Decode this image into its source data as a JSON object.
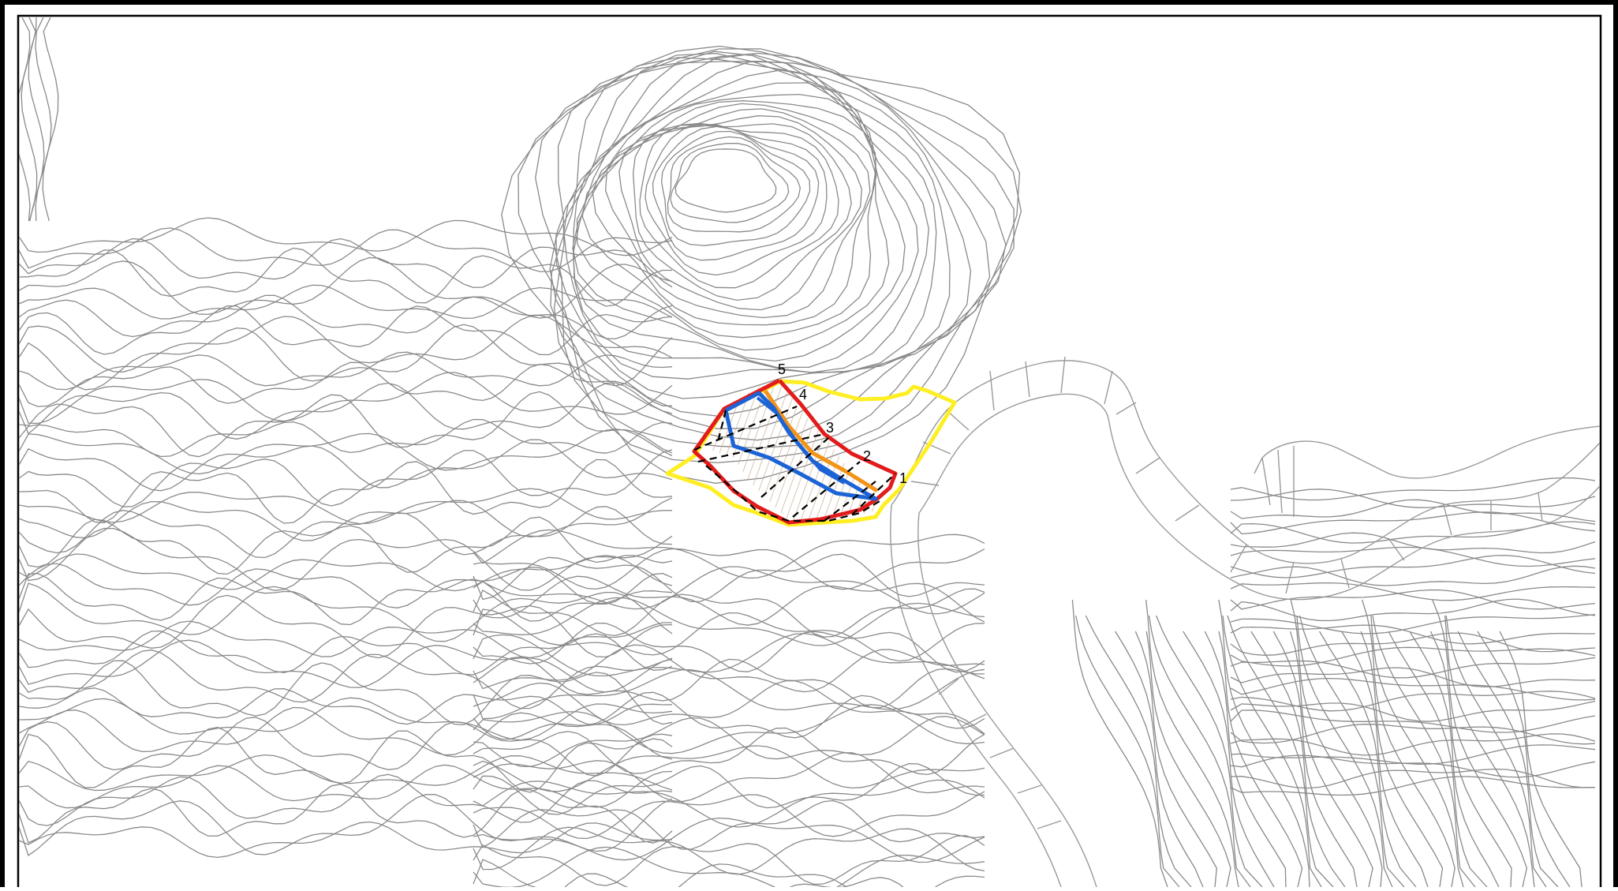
{
  "map": {
    "section_labels": [
      "1",
      "2",
      "3",
      "4",
      "5"
    ],
    "colors": {
      "frame": "#000000",
      "contour": "#8a8a8a",
      "road": "#9a9a9a",
      "outer_zone": "#ffee22",
      "danger_zone": "#e21b1b",
      "warning_zone": "#f29417",
      "core_zone": "#1c64d6",
      "section_line": "#000000",
      "hatch": "#c9a98a"
    },
    "legend_visible": false,
    "grid": false
  }
}
